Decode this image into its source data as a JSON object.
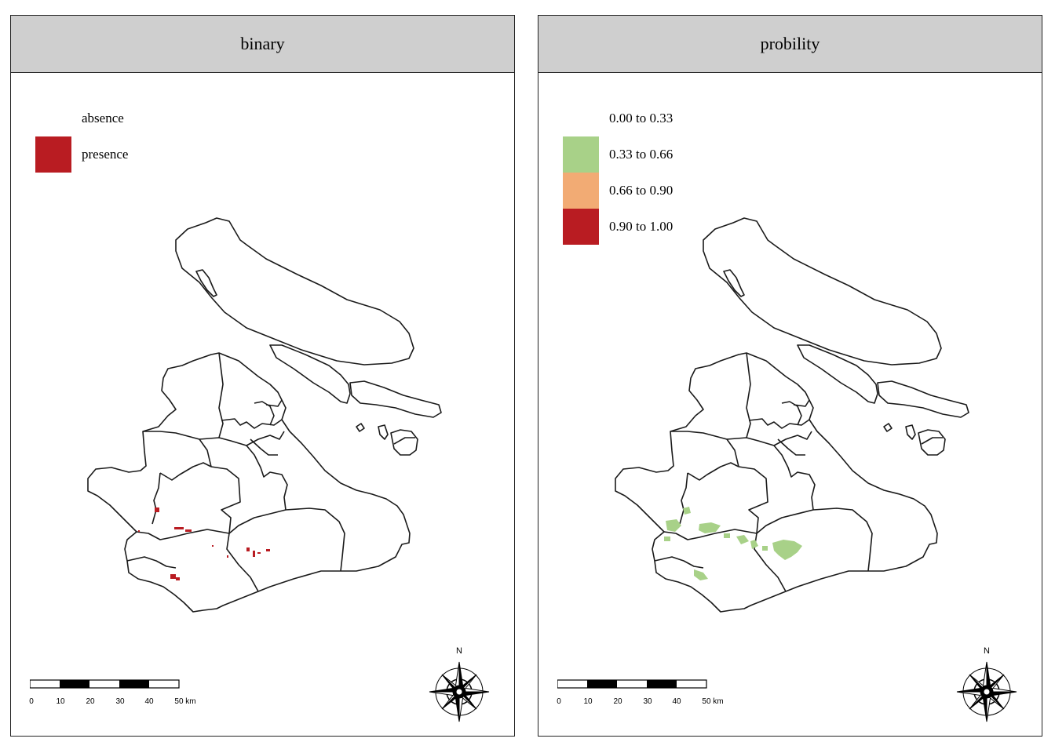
{
  "panels": [
    {
      "title": "binary",
      "legend": [
        {
          "label": "absence",
          "color": "#ffffff"
        },
        {
          "label": "presence",
          "color": "#b91c22"
        }
      ],
      "fill_color": "#b91c22"
    },
    {
      "title": "probility",
      "legend": [
        {
          "label": "0.00 to 0.33",
          "color": "#ffffff"
        },
        {
          "label": "0.33 to 0.66",
          "color": "#a8d188"
        },
        {
          "label": "0.66 to 0.90",
          "color": "#f2ab74"
        },
        {
          "label": "0.90 to 1.00",
          "color": "#b91c22"
        }
      ],
      "fill_color": "#a8d188"
    }
  ],
  "scale_bar": {
    "ticks": [
      "0",
      "10",
      "20",
      "30",
      "40",
      "50 km"
    ]
  },
  "north_arrow": {
    "label": "N"
  }
}
